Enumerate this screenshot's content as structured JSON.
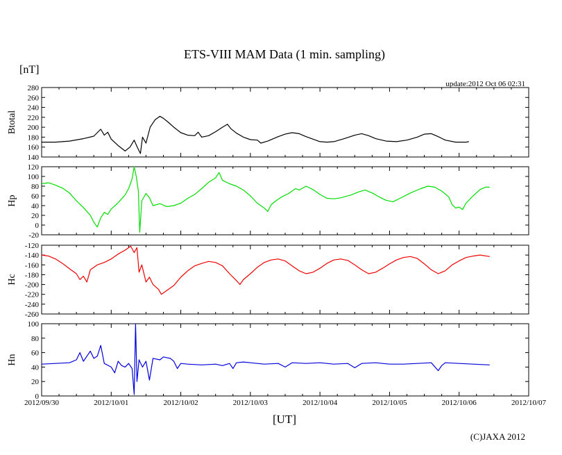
{
  "chart_data": {
    "type": "line",
    "title": "ETS-VIII MAM Data (1 min. sampling)",
    "unit_label": "[nT]",
    "update_text": "update:2012 Oct 06 02:31",
    "xlabel": "[UT]",
    "copyright": "(C)JAXA 2012",
    "x_ticks": [
      "2012/09/30",
      "2012/10/01",
      "2012/10/02",
      "2012/10/03",
      "2012/10/04",
      "2012/10/05",
      "2012/10/06",
      "2012/10/07"
    ],
    "x_range_days": [
      0,
      7
    ],
    "panels": [
      {
        "name": "Btotal",
        "color": "#000000",
        "ylim": [
          140,
          280
        ],
        "yticks": [
          140,
          160,
          180,
          200,
          220,
          240,
          260,
          280
        ],
        "series": [
          [
            0,
            170
          ],
          [
            0.2,
            170
          ],
          [
            0.4,
            172
          ],
          [
            0.6,
            177
          ],
          [
            0.75,
            182
          ],
          [
            0.85,
            196
          ],
          [
            0.9,
            184
          ],
          [
            0.95,
            190
          ],
          [
            1.0,
            176
          ],
          [
            1.1,
            163
          ],
          [
            1.2,
            152
          ],
          [
            1.27,
            160
          ],
          [
            1.33,
            174
          ],
          [
            1.38,
            158
          ],
          [
            1.42,
            147
          ],
          [
            1.45,
            180
          ],
          [
            1.5,
            168
          ],
          [
            1.56,
            200
          ],
          [
            1.63,
            215
          ],
          [
            1.7,
            222
          ],
          [
            1.75,
            218
          ],
          [
            1.82,
            210
          ],
          [
            1.9,
            200
          ],
          [
            2.0,
            189
          ],
          [
            2.1,
            184
          ],
          [
            2.2,
            183
          ],
          [
            2.25,
            190
          ],
          [
            2.3,
            180
          ],
          [
            2.4,
            183
          ],
          [
            2.5,
            191
          ],
          [
            2.6,
            200
          ],
          [
            2.67,
            206
          ],
          [
            2.72,
            197
          ],
          [
            2.8,
            188
          ],
          [
            2.9,
            180
          ],
          [
            3.0,
            175
          ],
          [
            3.1,
            174
          ],
          [
            3.15,
            168
          ],
          [
            3.25,
            172
          ],
          [
            3.4,
            181
          ],
          [
            3.5,
            186
          ],
          [
            3.6,
            189
          ],
          [
            3.7,
            187
          ],
          [
            3.8,
            181
          ],
          [
            3.9,
            176
          ],
          [
            4.0,
            171
          ],
          [
            4.1,
            170
          ],
          [
            4.2,
            171
          ],
          [
            4.35,
            177
          ],
          [
            4.5,
            184
          ],
          [
            4.6,
            187
          ],
          [
            4.7,
            183
          ],
          [
            4.8,
            177
          ],
          [
            4.95,
            172
          ],
          [
            5.1,
            171
          ],
          [
            5.25,
            174
          ],
          [
            5.4,
            180
          ],
          [
            5.5,
            186
          ],
          [
            5.6,
            187
          ],
          [
            5.7,
            181
          ],
          [
            5.8,
            174
          ],
          [
            5.95,
            170
          ],
          [
            6.1,
            170
          ],
          [
            6.14,
            171
          ]
        ]
      },
      {
        "name": "Hp",
        "color": "#00dd00",
        "ylim": [
          -20,
          120
        ],
        "yticks": [
          -20,
          0,
          20,
          40,
          60,
          80,
          100,
          120
        ],
        "series": [
          [
            0,
            85
          ],
          [
            0.1,
            87
          ],
          [
            0.2,
            82
          ],
          [
            0.3,
            76
          ],
          [
            0.4,
            66
          ],
          [
            0.5,
            50
          ],
          [
            0.6,
            36
          ],
          [
            0.7,
            20
          ],
          [
            0.75,
            6
          ],
          [
            0.8,
            -4
          ],
          [
            0.85,
            15
          ],
          [
            0.9,
            26
          ],
          [
            0.95,
            22
          ],
          [
            1.0,
            33
          ],
          [
            1.1,
            46
          ],
          [
            1.2,
            62
          ],
          [
            1.25,
            75
          ],
          [
            1.3,
            95
          ],
          [
            1.33,
            120
          ],
          [
            1.36,
            100
          ],
          [
            1.39,
            70
          ],
          [
            1.41,
            -15
          ],
          [
            1.44,
            50
          ],
          [
            1.5,
            65
          ],
          [
            1.55,
            56
          ],
          [
            1.6,
            40
          ],
          [
            1.7,
            44
          ],
          [
            1.8,
            38
          ],
          [
            1.9,
            40
          ],
          [
            2.0,
            45
          ],
          [
            2.1,
            55
          ],
          [
            2.2,
            63
          ],
          [
            2.3,
            75
          ],
          [
            2.4,
            88
          ],
          [
            2.5,
            97
          ],
          [
            2.55,
            108
          ],
          [
            2.6,
            92
          ],
          [
            2.7,
            85
          ],
          [
            2.8,
            80
          ],
          [
            2.9,
            72
          ],
          [
            3.0,
            60
          ],
          [
            3.1,
            45
          ],
          [
            3.2,
            35
          ],
          [
            3.25,
            28
          ],
          [
            3.3,
            42
          ],
          [
            3.35,
            48
          ],
          [
            3.45,
            58
          ],
          [
            3.55,
            65
          ],
          [
            3.65,
            75
          ],
          [
            3.7,
            72
          ],
          [
            3.8,
            80
          ],
          [
            3.9,
            73
          ],
          [
            4.0,
            63
          ],
          [
            4.1,
            55
          ],
          [
            4.2,
            54
          ],
          [
            4.3,
            56
          ],
          [
            4.45,
            62
          ],
          [
            4.55,
            68
          ],
          [
            4.65,
            72
          ],
          [
            4.75,
            66
          ],
          [
            4.85,
            58
          ],
          [
            4.95,
            51
          ],
          [
            5.05,
            48
          ],
          [
            5.15,
            55
          ],
          [
            5.3,
            66
          ],
          [
            5.45,
            75
          ],
          [
            5.55,
            80
          ],
          [
            5.65,
            78
          ],
          [
            5.75,
            70
          ],
          [
            5.85,
            58
          ],
          [
            5.9,
            42
          ],
          [
            5.95,
            35
          ],
          [
            6.0,
            37
          ],
          [
            6.05,
            32
          ],
          [
            6.1,
            45
          ],
          [
            6.2,
            60
          ],
          [
            6.3,
            73
          ],
          [
            6.38,
            78
          ],
          [
            6.44,
            78
          ]
        ]
      },
      {
        "name": "Hc",
        "color": "#ee0000",
        "ylim": [
          -260,
          -120
        ],
        "yticks": [
          -260,
          -240,
          -220,
          -200,
          -180,
          -160,
          -140,
          -120
        ],
        "series": [
          [
            0,
            -140
          ],
          [
            0.1,
            -142
          ],
          [
            0.2,
            -148
          ],
          [
            0.3,
            -157
          ],
          [
            0.4,
            -168
          ],
          [
            0.5,
            -178
          ],
          [
            0.55,
            -190
          ],
          [
            0.6,
            -183
          ],
          [
            0.65,
            -195
          ],
          [
            0.7,
            -170
          ],
          [
            0.8,
            -160
          ],
          [
            0.9,
            -155
          ],
          [
            1.0,
            -148
          ],
          [
            1.1,
            -138
          ],
          [
            1.2,
            -130
          ],
          [
            1.28,
            -122
          ],
          [
            1.33,
            -135
          ],
          [
            1.37,
            -125
          ],
          [
            1.4,
            -175
          ],
          [
            1.44,
            -160
          ],
          [
            1.5,
            -195
          ],
          [
            1.55,
            -185
          ],
          [
            1.6,
            -200
          ],
          [
            1.68,
            -210
          ],
          [
            1.72,
            -220
          ],
          [
            1.8,
            -212
          ],
          [
            1.9,
            -202
          ],
          [
            2.0,
            -185
          ],
          [
            2.1,
            -172
          ],
          [
            2.2,
            -162
          ],
          [
            2.3,
            -157
          ],
          [
            2.4,
            -153
          ],
          [
            2.5,
            -155
          ],
          [
            2.6,
            -162
          ],
          [
            2.7,
            -178
          ],
          [
            2.8,
            -192
          ],
          [
            2.85,
            -200
          ],
          [
            2.9,
            -190
          ],
          [
            3.0,
            -178
          ],
          [
            3.1,
            -165
          ],
          [
            3.2,
            -155
          ],
          [
            3.3,
            -150
          ],
          [
            3.4,
            -148
          ],
          [
            3.5,
            -152
          ],
          [
            3.6,
            -162
          ],
          [
            3.7,
            -172
          ],
          [
            3.8,
            -178
          ],
          [
            3.9,
            -175
          ],
          [
            4.0,
            -167
          ],
          [
            4.1,
            -157
          ],
          [
            4.2,
            -150
          ],
          [
            4.3,
            -148
          ],
          [
            4.4,
            -151
          ],
          [
            4.5,
            -160
          ],
          [
            4.6,
            -170
          ],
          [
            4.7,
            -178
          ],
          [
            4.8,
            -175
          ],
          [
            4.9,
            -167
          ],
          [
            5.0,
            -158
          ],
          [
            5.1,
            -150
          ],
          [
            5.2,
            -145
          ],
          [
            5.3,
            -143
          ],
          [
            5.4,
            -147
          ],
          [
            5.5,
            -158
          ],
          [
            5.6,
            -170
          ],
          [
            5.7,
            -178
          ],
          [
            5.8,
            -172
          ],
          [
            5.9,
            -160
          ],
          [
            6.0,
            -152
          ],
          [
            6.1,
            -145
          ],
          [
            6.2,
            -142
          ],
          [
            6.3,
            -140
          ],
          [
            6.44,
            -143
          ]
        ]
      },
      {
        "name": "Hn",
        "color": "#0000dd",
        "ylim": [
          0,
          100
        ],
        "yticks": [
          0,
          20,
          40,
          60,
          80,
          100
        ],
        "series": [
          [
            0,
            44
          ],
          [
            0.2,
            45
          ],
          [
            0.4,
            46
          ],
          [
            0.5,
            50
          ],
          [
            0.55,
            60
          ],
          [
            0.6,
            48
          ],
          [
            0.65,
            55
          ],
          [
            0.7,
            62
          ],
          [
            0.75,
            52
          ],
          [
            0.8,
            55
          ],
          [
            0.85,
            70
          ],
          [
            0.9,
            45
          ],
          [
            1.0,
            40
          ],
          [
            1.05,
            32
          ],
          [
            1.1,
            48
          ],
          [
            1.15,
            42
          ],
          [
            1.2,
            40
          ],
          [
            1.25,
            45
          ],
          [
            1.3,
            38
          ],
          [
            1.33,
            2
          ],
          [
            1.35,
            100
          ],
          [
            1.37,
            20
          ],
          [
            1.4,
            50
          ],
          [
            1.45,
            40
          ],
          [
            1.5,
            48
          ],
          [
            1.55,
            22
          ],
          [
            1.6,
            52
          ],
          [
            1.7,
            50
          ],
          [
            1.75,
            54
          ],
          [
            1.8,
            53
          ],
          [
            1.85,
            52
          ],
          [
            1.9,
            48
          ],
          [
            1.95,
            38
          ],
          [
            2.0,
            45
          ],
          [
            2.1,
            44
          ],
          [
            2.3,
            43
          ],
          [
            2.5,
            44
          ],
          [
            2.6,
            42
          ],
          [
            2.7,
            45
          ],
          [
            2.75,
            38
          ],
          [
            2.8,
            46
          ],
          [
            2.9,
            47
          ],
          [
            3.0,
            46
          ],
          [
            3.2,
            44
          ],
          [
            3.4,
            45
          ],
          [
            3.5,
            40
          ],
          [
            3.6,
            46
          ],
          [
            3.8,
            45
          ],
          [
            4.0,
            46
          ],
          [
            4.2,
            44
          ],
          [
            4.4,
            45
          ],
          [
            4.5,
            39
          ],
          [
            4.6,
            45
          ],
          [
            4.8,
            46
          ],
          [
            5.0,
            44
          ],
          [
            5.2,
            44
          ],
          [
            5.4,
            45
          ],
          [
            5.6,
            46
          ],
          [
            5.7,
            35
          ],
          [
            5.75,
            42
          ],
          [
            5.8,
            46
          ],
          [
            6.0,
            45
          ],
          [
            6.2,
            44
          ],
          [
            6.44,
            43
          ]
        ]
      }
    ]
  }
}
